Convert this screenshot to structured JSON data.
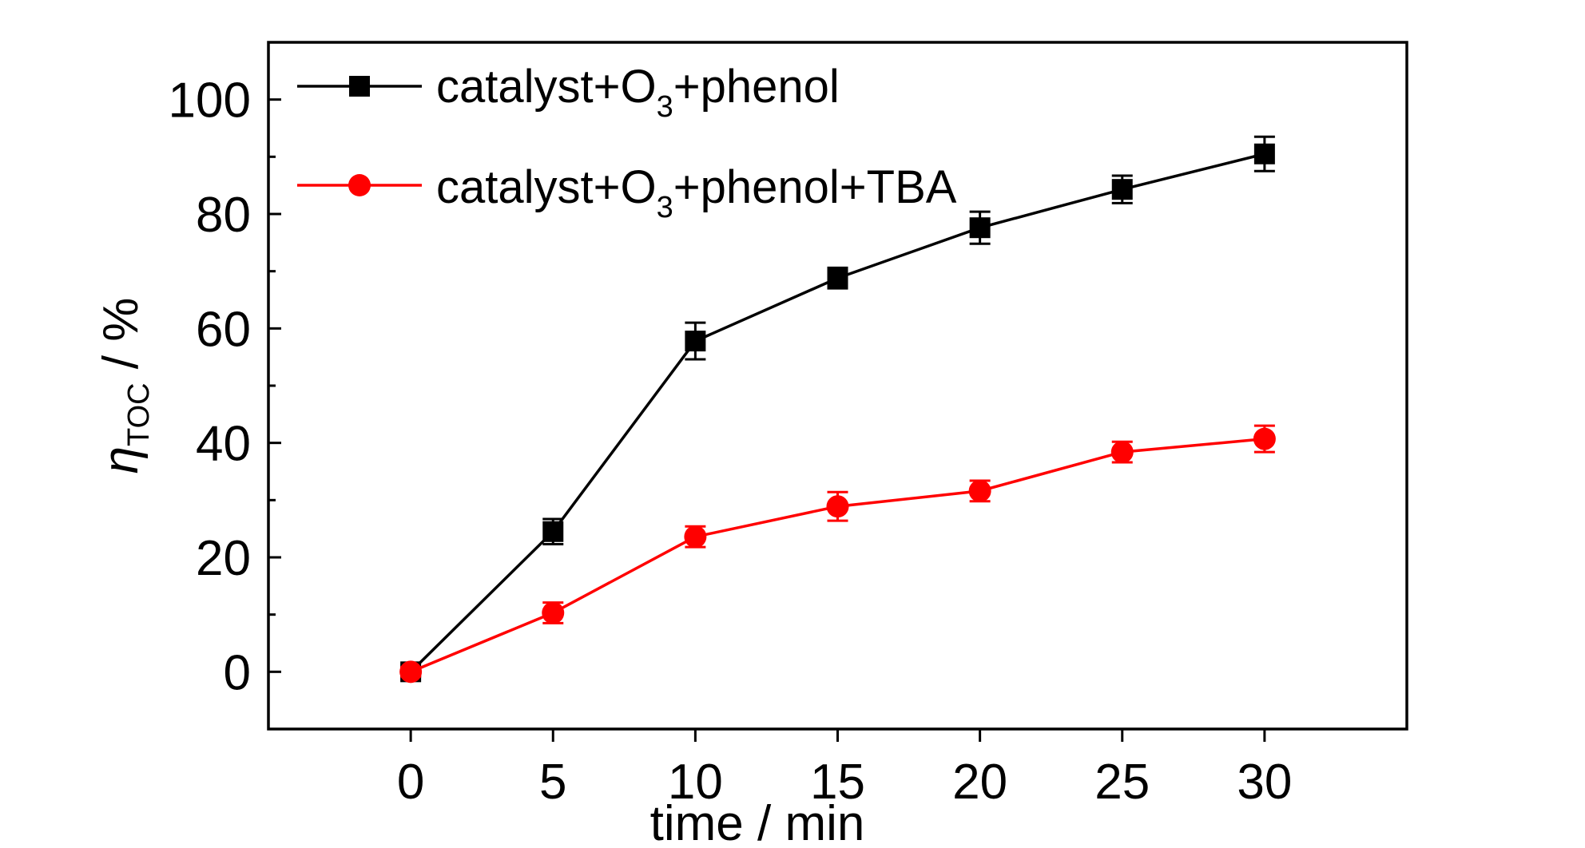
{
  "chart_data": {
    "type": "line",
    "xlabel": "time / min",
    "ylabel": {
      "symbol": "η",
      "subscript": "TOC",
      "unit": " / %"
    },
    "xlim": [
      -5,
      35
    ],
    "ylim": [
      -10,
      110
    ],
    "x_ticks": [
      0,
      5,
      10,
      15,
      20,
      25,
      30
    ],
    "y_ticks": [
      0,
      20,
      40,
      60,
      80,
      100
    ],
    "y_minor_step": 10,
    "grid": false,
    "legend_position": "top-left",
    "series": [
      {
        "name": "catalyst+O3+phenol",
        "name_parts": {
          "prefix": "catalyst+O",
          "sub": "3",
          "suffix": "+phenol"
        },
        "marker": "square",
        "color": "#000000",
        "x": [
          0,
          5,
          10,
          15,
          20,
          25,
          30
        ],
        "y": [
          0,
          24.5,
          57.8,
          68.8,
          77.6,
          84.3,
          90.5
        ],
        "err": [
          0.8,
          2.2,
          3.2,
          1.8,
          2.8,
          2.4,
          3.0
        ]
      },
      {
        "name": "catalyst+O3+phenol+TBA",
        "name_parts": {
          "prefix": "catalyst+O",
          "sub": "3",
          "suffix": "+phenol+TBA"
        },
        "marker": "circle",
        "color": "#ff0000",
        "x": [
          0,
          5,
          10,
          15,
          20,
          25,
          30
        ],
        "y": [
          0,
          10.3,
          23.6,
          28.9,
          31.6,
          38.4,
          40.7
        ],
        "err": [
          0.8,
          1.8,
          1.8,
          2.5,
          1.8,
          1.8,
          2.3
        ]
      }
    ]
  }
}
